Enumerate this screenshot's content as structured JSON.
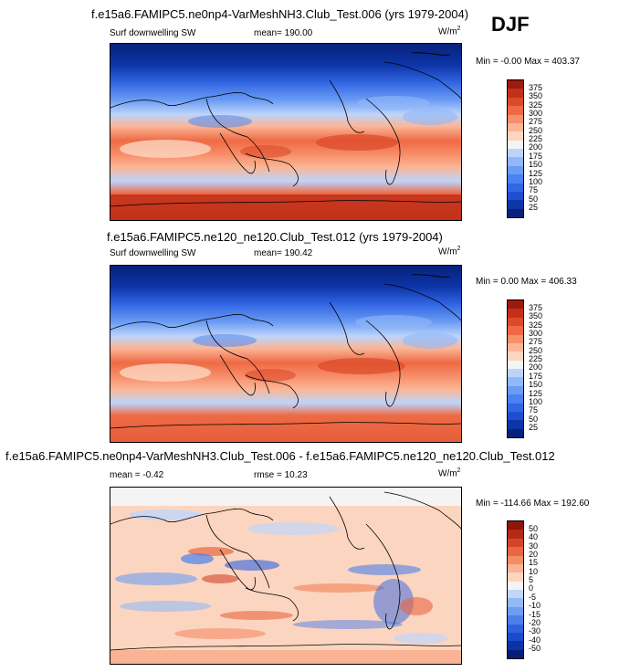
{
  "season": "DJF",
  "panels": [
    {
      "title": "f.e15a6.FAMIPC5.ne0np4-VarMeshNH3.Club_Test.006 (yrs 1979-2004)",
      "variable": "Surf downwelling SW",
      "stat": "mean= 190.00",
      "units_base": "W/m",
      "units_exp": "2",
      "minmax": "Min = -0.00 Max = 403.37"
    },
    {
      "title": "f.e15a6.FAMIPC5.ne120_ne120.Club_Test.012 (yrs 1979-2004)",
      "variable": "Surf downwelling SW",
      "stat": "mean= 190.42",
      "units_base": "W/m",
      "units_exp": "2",
      "minmax": "Min = 0.00 Max = 406.33"
    },
    {
      "title": "f.e15a6.FAMIPC5.ne0np4-VarMeshNH3.Club_Test.006 - f.e15a6.FAMIPC5.ne120_ne120.Club_Test.012",
      "stat": "mean = -0.42",
      "rmse": "rmse = 10.23",
      "units_base": "W/m",
      "units_exp": "2",
      "minmax": "Min = -114.66 Max = 192.60"
    }
  ],
  "chart_data": [
    {
      "type": "heatmap",
      "title": "f.e15a6.FAMIPC5.ne0np4-VarMeshNH3.Club_Test.006 (yrs 1979-2004)",
      "variable": "Surf downwelling SW",
      "units": "W/m2",
      "mean": 190.0,
      "min": -0.0,
      "max": 403.37,
      "colorbar_levels": [
        25,
        50,
        75,
        100,
        125,
        150,
        175,
        200,
        225,
        250,
        275,
        300,
        325,
        350,
        375
      ]
    },
    {
      "type": "heatmap",
      "title": "f.e15a6.FAMIPC5.ne120_ne120.Club_Test.012 (yrs 1979-2004)",
      "variable": "Surf downwelling SW",
      "units": "W/m2",
      "mean": 190.42,
      "min": 0.0,
      "max": 406.33,
      "colorbar_levels": [
        25,
        50,
        75,
        100,
        125,
        150,
        175,
        200,
        225,
        250,
        275,
        300,
        325,
        350,
        375
      ]
    },
    {
      "type": "heatmap",
      "title": "f.e15a6.FAMIPC5.ne0np4-VarMeshNH3.Club_Test.006 - f.e15a6.FAMIPC5.ne120_ne120.Club_Test.012",
      "units": "W/m2",
      "mean": -0.42,
      "rmse": 10.23,
      "min": -114.66,
      "max": 192.6,
      "colorbar_levels": [
        -50,
        -40,
        -30,
        -20,
        -15,
        -10,
        -5,
        0,
        5,
        10,
        15,
        20,
        30,
        40,
        50
      ]
    }
  ],
  "colors": {
    "abs_scale": [
      "#08217a",
      "#0c35a8",
      "#1f4fd0",
      "#3266e3",
      "#4a82ef",
      "#6b9cf4",
      "#91b8f8",
      "#bcd4fb",
      "#f3f3f3",
      "#fcd6c1",
      "#fbb595",
      "#f78f6a",
      "#ee6a45",
      "#dc4a2a",
      "#c2301a",
      "#9c1a0f"
    ],
    "diff_scale": [
      "#071d7a",
      "#0b33a6",
      "#1b4bcb",
      "#2f63dd",
      "#4b80ea",
      "#6d9df2",
      "#93baf7",
      "#c0d6fb",
      "#f4f4f4",
      "#fcd5c0",
      "#fab393",
      "#f48c66",
      "#e86641",
      "#d24528",
      "#b32a17",
      "#8e150b"
    ]
  }
}
